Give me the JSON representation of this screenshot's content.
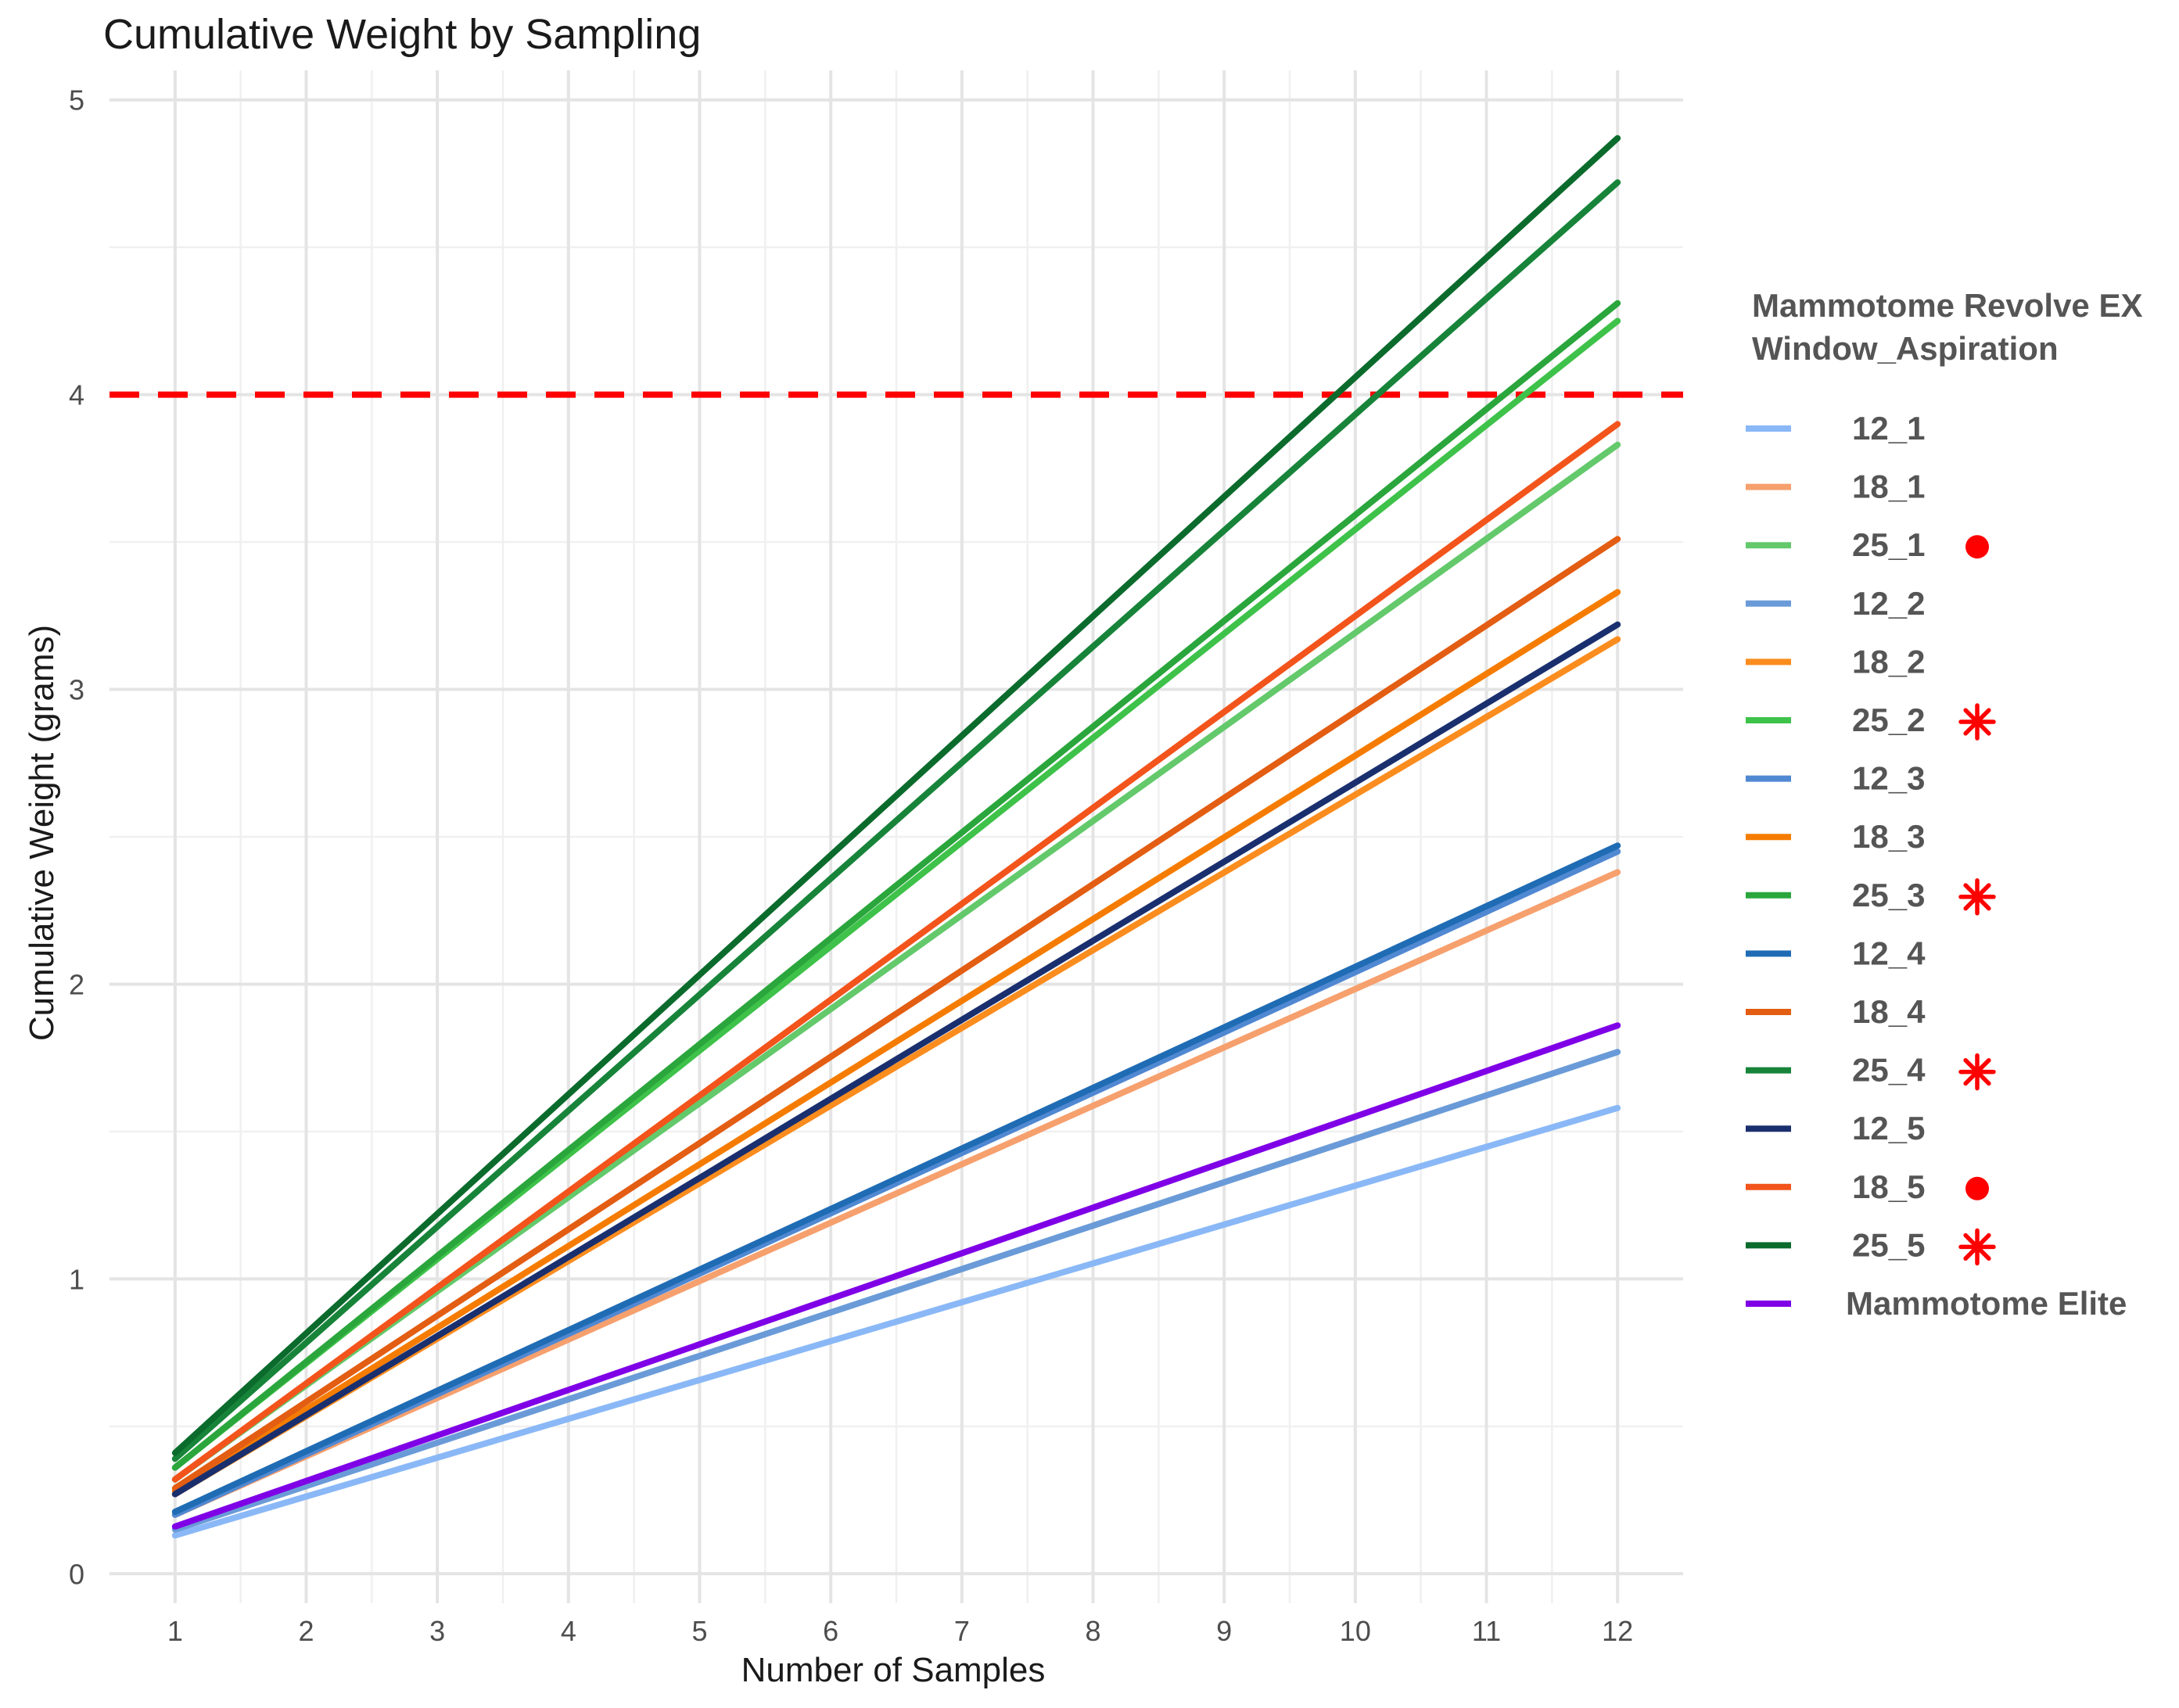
{
  "chart_data": {
    "type": "line",
    "title": "Cumulative Weight by Sampling",
    "xlabel": "Number of Samples",
    "ylabel": "Cumulative Weight (grams)",
    "xlim": [
      0.5,
      12.5
    ],
    "ylim": [
      -0.1,
      5.1
    ],
    "x_ticks": [
      1,
      2,
      3,
      4,
      5,
      6,
      7,
      8,
      9,
      10,
      11,
      12
    ],
    "y_ticks": [
      0,
      1,
      2,
      3,
      4,
      5
    ],
    "grid": true,
    "reference_line": {
      "y": 4,
      "color": "#ff0000",
      "style": "dashed"
    },
    "legend": {
      "position": "right",
      "title_lines": [
        "Mammotome Revolve EX",
        "Window_Aspiration"
      ]
    },
    "series": [
      {
        "name": "12_1",
        "color": "#8ab8f7",
        "start": 0.13,
        "end": 1.58,
        "marker": ""
      },
      {
        "name": "18_1",
        "color": "#f6a06e",
        "start": 0.2,
        "end": 2.38,
        "marker": ""
      },
      {
        "name": "25_1",
        "color": "#63c96b",
        "start": 0.32,
        "end": 3.83,
        "marker": "dot"
      },
      {
        "name": "12_2",
        "color": "#6a9bd8",
        "start": 0.15,
        "end": 1.77,
        "marker": ""
      },
      {
        "name": "18_2",
        "color": "#fb8c1e",
        "start": 0.27,
        "end": 3.17,
        "marker": ""
      },
      {
        "name": "25_2",
        "color": "#3ec24a",
        "start": 0.36,
        "end": 4.25,
        "marker": "asterisk"
      },
      {
        "name": "12_3",
        "color": "#5088d2",
        "start": 0.2,
        "end": 2.45,
        "marker": ""
      },
      {
        "name": "18_3",
        "color": "#f57c00",
        "start": 0.28,
        "end": 3.33,
        "marker": ""
      },
      {
        "name": "25_3",
        "color": "#2aa63c",
        "start": 0.36,
        "end": 4.31,
        "marker": "asterisk"
      },
      {
        "name": "12_4",
        "color": "#1f6cb4",
        "start": 0.21,
        "end": 2.47,
        "marker": ""
      },
      {
        "name": "18_4",
        "color": "#e35d12",
        "start": 0.29,
        "end": 3.51,
        "marker": ""
      },
      {
        "name": "25_4",
        "color": "#17843a",
        "start": 0.39,
        "end": 4.72,
        "marker": "asterisk"
      },
      {
        "name": "12_5",
        "color": "#1a2f6e",
        "start": 0.27,
        "end": 3.22,
        "marker": ""
      },
      {
        "name": "18_5",
        "color": "#f2541c",
        "start": 0.32,
        "end": 3.9,
        "marker": "dot"
      },
      {
        "name": "25_5",
        "color": "#0b6b2c",
        "start": 0.41,
        "end": 4.87,
        "marker": "asterisk"
      },
      {
        "name": "Mammotome Elite",
        "color": "#7f00e6",
        "start": 0.16,
        "end": 1.86,
        "marker": ""
      }
    ]
  }
}
